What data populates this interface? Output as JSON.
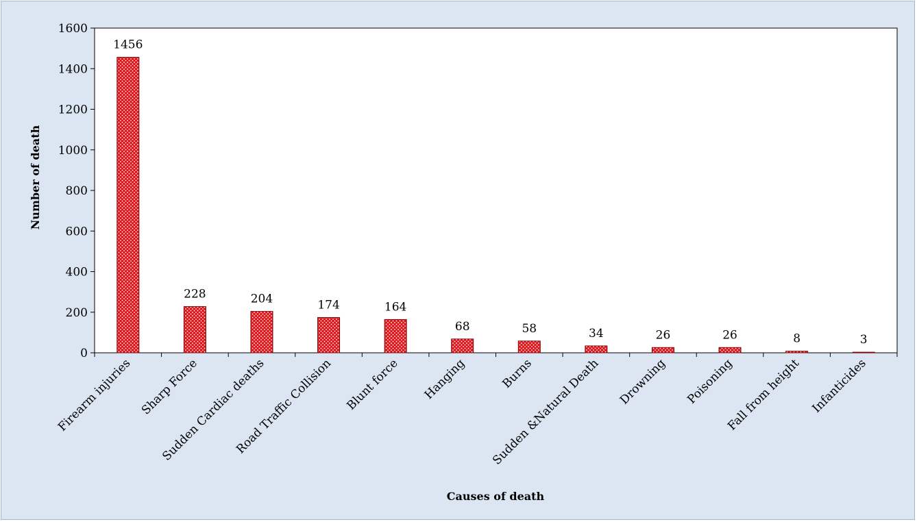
{
  "chart_data": {
    "type": "bar",
    "title": "",
    "xlabel": "Causes of death",
    "ylabel": "Number of death",
    "ylim": [
      0,
      1600
    ],
    "yticks": [
      0,
      200,
      400,
      600,
      800,
      1000,
      1200,
      1400,
      1600
    ],
    "grid": false,
    "legend": "none",
    "categories": [
      "Firearm injuries",
      "Sharp Force",
      "Sudden Cardiac deaths",
      "Road Traffic Collision",
      "Blunt force",
      "Hanging",
      "Burns",
      "Sudden &Natural Death",
      "Drowning",
      "Poisoning",
      "Fall from height",
      "Infanticides"
    ],
    "values": [
      1456,
      228,
      204,
      174,
      164,
      68,
      58,
      34,
      26,
      26,
      8,
      3
    ],
    "colors": {
      "bar_fill": "#e0161b",
      "bar_dots": "#ffffff",
      "bar_stroke": "#7a0a0c",
      "background": "#dce6f2",
      "plot_area": "#ffffff"
    }
  }
}
